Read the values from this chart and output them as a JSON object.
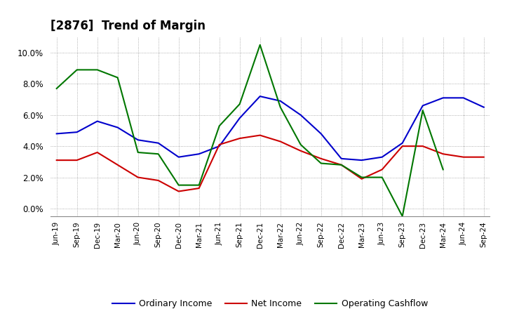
{
  "title": "[2876]  Trend of Margin",
  "x_labels": [
    "Jun-19",
    "Sep-19",
    "Dec-19",
    "Mar-20",
    "Jun-20",
    "Sep-20",
    "Dec-20",
    "Mar-21",
    "Jun-21",
    "Sep-21",
    "Dec-21",
    "Mar-22",
    "Jun-22",
    "Sep-22",
    "Dec-22",
    "Mar-23",
    "Jun-23",
    "Sep-23",
    "Dec-23",
    "Mar-24",
    "Jun-24",
    "Sep-24"
  ],
  "ordinary_income": [
    4.8,
    4.9,
    5.6,
    5.2,
    4.4,
    4.2,
    3.3,
    3.5,
    4.0,
    5.8,
    7.2,
    6.9,
    6.0,
    4.8,
    3.2,
    3.1,
    3.3,
    4.2,
    6.6,
    7.1,
    7.1,
    6.5
  ],
  "net_income": [
    3.1,
    3.1,
    3.6,
    2.8,
    2.0,
    1.8,
    1.1,
    1.3,
    4.1,
    4.5,
    4.7,
    4.3,
    3.7,
    3.2,
    2.8,
    1.9,
    2.5,
    4.0,
    4.0,
    3.5,
    3.3,
    3.3
  ],
  "operating_cashflow": [
    7.7,
    8.9,
    8.9,
    8.4,
    3.6,
    3.5,
    1.5,
    1.5,
    5.3,
    6.7,
    10.5,
    6.5,
    4.1,
    2.9,
    2.8,
    2.0,
    2.0,
    -0.5,
    6.3,
    2.5,
    null,
    null
  ],
  "ylim": [
    -0.5,
    11.0
  ],
  "yticks": [
    0.0,
    2.0,
    4.0,
    6.0,
    8.0,
    10.0
  ],
  "line_color_ordinary": "#0000cc",
  "line_color_net": "#cc0000",
  "line_color_cashflow": "#007700",
  "background_color": "#ffffff",
  "grid_color": "#999999",
  "title_fontsize": 12,
  "legend_labels": [
    "Ordinary Income",
    "Net Income",
    "Operating Cashflow"
  ]
}
